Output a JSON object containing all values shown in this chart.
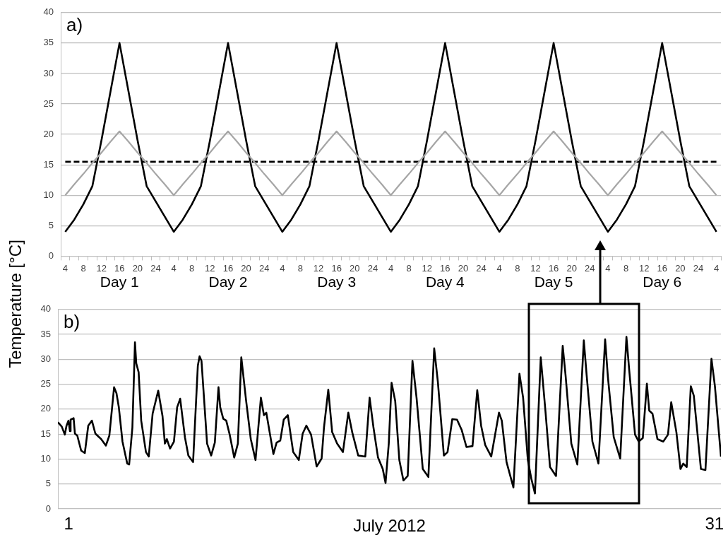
{
  "chart_data": [
    {
      "type": "line",
      "title": "a)",
      "ylabel": "Temperature [°C]",
      "categories": [
        "4",
        null,
        "8",
        null,
        "12",
        null,
        "16",
        null,
        "20",
        null,
        "24",
        null,
        "4",
        null,
        "8",
        null,
        "12",
        null,
        "16",
        null,
        "20",
        null,
        "24",
        null,
        "4",
        null,
        "8",
        null,
        "12",
        null,
        "16",
        null,
        "20",
        null,
        "24",
        null,
        "4",
        null,
        "8",
        null,
        "12",
        null,
        "16",
        null,
        "20",
        null,
        "24",
        null,
        "4",
        null,
        "8",
        null,
        "12",
        null,
        "16",
        null,
        "20",
        null,
        "24",
        null,
        "4",
        null,
        "8",
        null,
        "12",
        null,
        "16",
        null,
        "20",
        null,
        "24",
        null,
        "4"
      ],
      "series": [
        {
          "color": "#a6a6a6",
          "line_style": "solid",
          "values": [
            10,
            11.8,
            13.5,
            15.3,
            17,
            18.8,
            20.5,
            18.8,
            17,
            15.3,
            13.5,
            11.8,
            10,
            11.8,
            13.5,
            15.3,
            17,
            18.8,
            20.5,
            18.8,
            17,
            15.3,
            13.5,
            11.8,
            10,
            11.8,
            13.5,
            15.3,
            17,
            18.8,
            20.5,
            18.8,
            17,
            15.3,
            13.5,
            11.8,
            10,
            11.8,
            13.5,
            15.3,
            17,
            18.8,
            20.5,
            18.8,
            17,
            15.3,
            13.5,
            11.8,
            10,
            11.8,
            13.5,
            15.3,
            17,
            18.8,
            20.5,
            18.8,
            17,
            15.3,
            13.5,
            11.8,
            10,
            11.8,
            13.5,
            15.3,
            17,
            18.8,
            20.5,
            18.8,
            17,
            15.3,
            13.5,
            11.8,
            10
          ]
        },
        {
          "color": "#000000",
          "line_style": "dashed",
          "values": [
            15.5,
            15.5,
            15.5,
            15.5,
            15.5,
            15.5,
            15.5,
            15.5,
            15.5,
            15.5,
            15.5,
            15.5,
            15.5,
            15.5,
            15.5,
            15.5,
            15.5,
            15.5,
            15.5,
            15.5,
            15.5,
            15.5,
            15.5,
            15.5,
            15.5,
            15.5,
            15.5,
            15.5,
            15.5,
            15.5,
            15.5,
            15.5,
            15.5,
            15.5,
            15.5,
            15.5,
            15.5,
            15.5,
            15.5,
            15.5,
            15.5,
            15.5,
            15.5,
            15.5,
            15.5,
            15.5,
            15.5,
            15.5,
            15.5,
            15.5,
            15.5,
            15.5,
            15.5,
            15.5,
            15.5,
            15.5,
            15.5,
            15.5,
            15.5,
            15.5,
            15.5,
            15.5,
            15.5,
            15.5,
            15.5,
            15.5,
            15.5,
            15.5,
            15.5,
            15.5,
            15.5,
            15.5,
            15.5
          ]
        },
        {
          "color": "#000000",
          "line_style": "solid",
          "values": [
            4,
            6,
            8.5,
            11.5,
            19,
            27,
            35,
            27,
            19,
            11.5,
            9,
            6.5,
            4,
            6,
            8.5,
            11.5,
            19,
            27,
            35,
            27,
            19,
            11.5,
            9,
            6.5,
            4,
            6,
            8.5,
            11.5,
            19,
            27,
            35,
            27,
            19,
            11.5,
            9,
            6.5,
            4,
            6,
            8.5,
            11.5,
            19,
            27,
            35,
            27,
            19,
            11.5,
            9,
            6.5,
            4,
            6,
            8.5,
            11.5,
            19,
            27,
            35,
            27,
            19,
            11.5,
            9,
            6.5,
            4,
            6,
            8.5,
            11.5,
            19,
            27,
            35,
            27,
            19,
            11.5,
            9,
            6.5,
            4
          ]
        }
      ],
      "annotations": [
        "Day 1",
        "Day 2",
        "Day 3",
        "Day 4",
        "Day 5",
        "Day 6"
      ],
      "ylim": [
        0,
        40
      ],
      "yticks": [
        0,
        5,
        10,
        15,
        20,
        25,
        30,
        35,
        40
      ],
      "grid": "y",
      "marker": "none",
      "legend": false
    },
    {
      "type": "line",
      "title": "b)",
      "xlabel": "July 2012",
      "series": [
        {
          "color": "#000000",
          "line_style": "solid",
          "x": [
            0.5,
            0.68,
            0.82,
            0.9,
            0.99,
            1.06,
            1.09,
            1.23,
            1.29,
            1.4,
            1.58,
            1.75,
            1.91,
            2.08,
            2.24,
            2.51,
            2.73,
            2.89,
            3.11,
            3.22,
            3.33,
            3.5,
            3.72,
            3.81,
            3.96,
            4.08,
            4.14,
            4.25,
            4.37,
            4.59,
            4.72,
            4.9,
            5.16,
            5.36,
            5.47,
            5.56,
            5.71,
            5.89,
            6.04,
            6.18,
            6.4,
            6.56,
            6.78,
            7.0,
            7.08,
            7.17,
            7.43,
            7.62,
            7.79,
            7.96,
            8.04,
            8.18,
            8.32,
            8.48,
            8.69,
            8.86,
            9.02,
            9.24,
            9.46,
            9.68,
            9.93,
            10.07,
            10.18,
            10.51,
            10.66,
            10.83,
            10.99,
            11.18,
            11.43,
            11.69,
            11.87,
            12.04,
            12.26,
            12.52,
            12.75,
            12.86,
            13.06,
            13.24,
            13.47,
            13.74,
            13.99,
            14.17,
            14.45,
            14.78,
            14.98,
            15.16,
            15.37,
            15.59,
            15.72,
            15.87,
            16.0,
            16.17,
            16.36,
            16.55,
            16.75,
            16.97,
            17.16,
            17.45,
            17.71,
            17.98,
            18.15,
            18.43,
            18.6,
            18.82,
            19.04,
            19.26,
            19.48,
            19.76,
            19.98,
            20.16,
            20.35,
            20.63,
            20.99,
            21.12,
            21.34,
            21.66,
            21.94,
            22.11,
            22.33,
            22.49,
            22.66,
            22.93,
            23.15,
            23.36,
            23.64,
            23.95,
            24.08,
            24.35,
            24.63,
            24.93,
            25.06,
            25.33,
            25.61,
            25.92,
            26.05,
            26.32,
            26.62,
            26.91,
            27.04,
            27.31,
            27.48,
            27.67,
            27.86,
            27.97,
            28.12,
            28.35,
            28.62,
            28.84,
            28.99,
            29.23,
            29.42,
            29.55,
            29.71,
            29.9,
            30.04,
            30.37,
            30.58,
            30.86,
            31.02,
            31.3
          ],
          "values": [
            17.4,
            16.5,
            14.9,
            16.7,
            17.7,
            15.6,
            17.9,
            18.2,
            15.1,
            14.7,
            11.7,
            11.2,
            16.7,
            17.7,
            15.1,
            14.0,
            12.7,
            14.7,
            24.4,
            23.2,
            20.4,
            13.5,
            9.1,
            8.9,
            16.3,
            33.4,
            29.2,
            27.4,
            17.7,
            11.4,
            10.5,
            19.1,
            23.7,
            18.6,
            13.1,
            14.0,
            12.1,
            13.5,
            20.4,
            22.1,
            14.4,
            10.7,
            9.4,
            28.7,
            30.6,
            29.7,
            13.1,
            10.7,
            13.3,
            24.4,
            20.4,
            18.1,
            17.7,
            14.9,
            10.3,
            13.1,
            30.4,
            21.8,
            14.0,
            9.8,
            22.3,
            18.8,
            19.3,
            11.0,
            13.3,
            13.7,
            17.9,
            18.8,
            11.4,
            9.8,
            15.1,
            16.7,
            14.9,
            8.5,
            10.1,
            16.3,
            23.9,
            15.4,
            13.1,
            11.4,
            19.3,
            15.4,
            10.7,
            10.5,
            22.3,
            16.3,
            10.3,
            8.0,
            5.2,
            13.1,
            25.3,
            21.6,
            9.8,
            5.7,
            6.6,
            29.7,
            22.3,
            8.0,
            6.4,
            32.2,
            25.5,
            10.7,
            11.4,
            18.0,
            17.9,
            15.8,
            12.4,
            12.6,
            23.8,
            16.7,
            12.8,
            10.5,
            19.3,
            17.7,
            9.4,
            4.3,
            27.1,
            22.3,
            9.8,
            6.1,
            3.1,
            30.4,
            19.5,
            8.4,
            6.6,
            32.7,
            26.9,
            13.1,
            8.9,
            33.8,
            26.9,
            13.5,
            9.1,
            34.0,
            26.4,
            14.4,
            10.1,
            34.5,
            27.8,
            14.9,
            13.5,
            14.2,
            25.1,
            19.7,
            19.1,
            14.0,
            13.5,
            14.9,
            21.4,
            15.4,
            8.0,
            9.1,
            8.4,
            24.6,
            22.7,
            8.0,
            7.8,
            30.1,
            24.6,
            10.5
          ]
        }
      ],
      "xlim": [
        0.5,
        31.3
      ],
      "xticks": [
        1,
        31
      ],
      "ylim": [
        0,
        40
      ],
      "yticks": [
        0,
        5,
        10,
        15,
        20,
        25,
        30,
        35,
        40
      ],
      "grid": "y",
      "marker": "none",
      "legend": false
    }
  ]
}
